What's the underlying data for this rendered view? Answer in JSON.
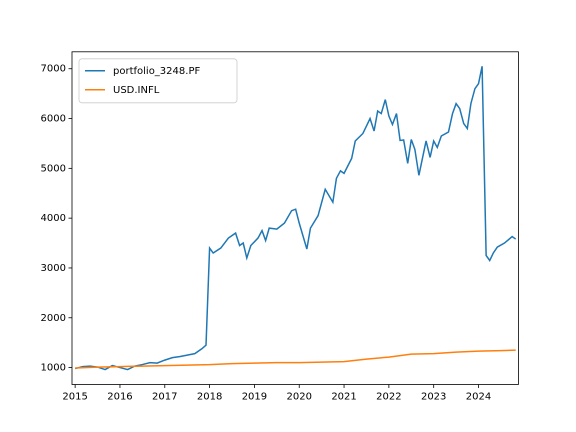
{
  "chart_data": {
    "type": "line",
    "series": [
      {
        "name": "portfolio_3248.PF",
        "color": "#1f77b4",
        "x": [
          2015.0,
          2015.17,
          2015.33,
          2015.5,
          2015.67,
          2015.83,
          2016.0,
          2016.17,
          2016.33,
          2016.5,
          2016.67,
          2016.83,
          2017.0,
          2017.17,
          2017.33,
          2017.5,
          2017.67,
          2017.83,
          2017.92,
          2018.0,
          2018.08,
          2018.25,
          2018.42,
          2018.58,
          2018.67,
          2018.75,
          2018.83,
          2018.92,
          2019.08,
          2019.17,
          2019.25,
          2019.33,
          2019.5,
          2019.67,
          2019.83,
          2019.92,
          2020.0,
          2020.17,
          2020.25,
          2020.42,
          2020.58,
          2020.75,
          2020.83,
          2020.92,
          2021.0,
          2021.17,
          2021.25,
          2021.42,
          2021.58,
          2021.67,
          2021.75,
          2021.83,
          2021.92,
          2022.0,
          2022.08,
          2022.17,
          2022.25,
          2022.33,
          2022.42,
          2022.5,
          2022.58,
          2022.67,
          2022.83,
          2022.92,
          2023.0,
          2023.08,
          2023.17,
          2023.33,
          2023.42,
          2023.5,
          2023.58,
          2023.67,
          2023.75,
          2023.83,
          2023.92,
          2024.0,
          2024.08,
          2024.17,
          2024.25,
          2024.33,
          2024.42,
          2024.58,
          2024.75,
          2024.83
        ],
        "values": [
          980,
          1020,
          1030,
          1010,
          960,
          1040,
          1000,
          960,
          1030,
          1060,
          1100,
          1090,
          1150,
          1200,
          1220,
          1250,
          1280,
          1380,
          1450,
          3400,
          3300,
          3400,
          3600,
          3700,
          3450,
          3500,
          3200,
          3450,
          3600,
          3750,
          3550,
          3800,
          3780,
          3900,
          4150,
          4180,
          3900,
          3380,
          3800,
          4050,
          4580,
          4320,
          4800,
          4950,
          4900,
          5200,
          5550,
          5700,
          6000,
          5750,
          6150,
          6100,
          6380,
          6050,
          5880,
          6100,
          5560,
          5570,
          5100,
          5580,
          5380,
          4860,
          5550,
          5220,
          5550,
          5420,
          5650,
          5730,
          6100,
          6300,
          6200,
          5900,
          5800,
          6300,
          6600,
          6700,
          7050,
          3250,
          3150,
          3300,
          3420,
          3500,
          3630,
          3580
        ]
      },
      {
        "name": "USD.INFL",
        "color": "#ff7f0e",
        "x": [
          2015.0,
          2015.5,
          2016.0,
          2016.5,
          2017.0,
          2017.5,
          2018.0,
          2018.5,
          2019.0,
          2019.5,
          2020.0,
          2020.5,
          2021.0,
          2021.5,
          2022.0,
          2022.5,
          2023.0,
          2023.5,
          2024.0,
          2024.5,
          2024.83
        ],
        "values": [
          990,
          1010,
          1020,
          1030,
          1040,
          1050,
          1060,
          1080,
          1090,
          1100,
          1100,
          1110,
          1120,
          1170,
          1210,
          1270,
          1280,
          1310,
          1330,
          1340,
          1350
        ]
      }
    ],
    "xlim": [
      2014.93,
      2024.89
    ],
    "xticks": [
      2015,
      2016,
      2017,
      2018,
      2019,
      2020,
      2021,
      2022,
      2023,
      2024
    ],
    "ylim": [
      660,
      7340
    ],
    "yticks": [
      1000,
      2000,
      3000,
      4000,
      5000,
      6000,
      7000
    ],
    "legend": "upper-left"
  }
}
